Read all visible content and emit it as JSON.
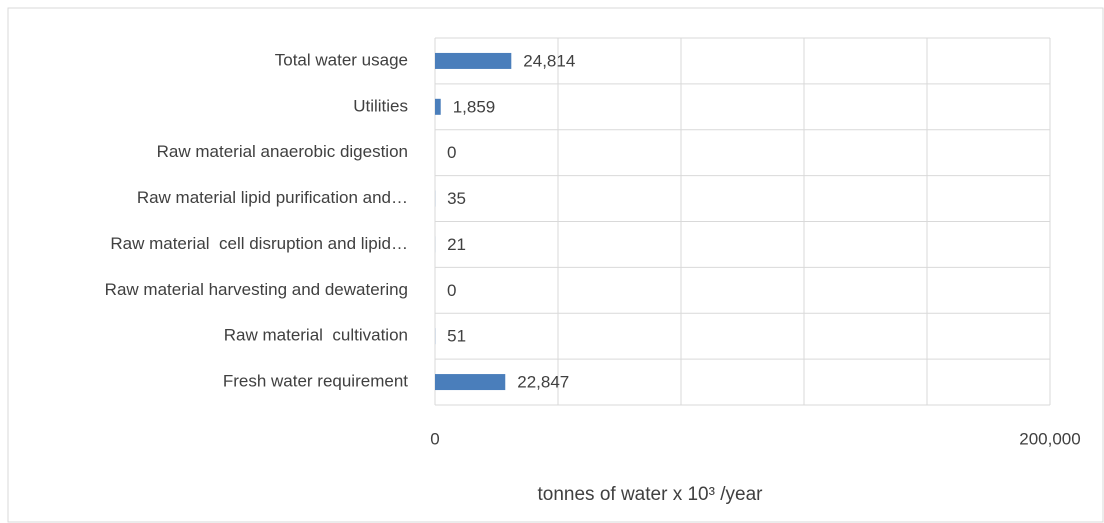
{
  "chart_data": {
    "type": "bar",
    "orientation": "horizontal",
    "categories": [
      "Total water usage",
      "Utilities",
      "Raw material anaerobic digestion",
      "Raw material lipid purification and…",
      "Raw material  cell disruption and lipid…",
      "Raw material harvesting and dewatering",
      "Raw material  cultivation",
      "Fresh water requirement"
    ],
    "values": [
      24814,
      1859,
      0,
      35,
      21,
      0,
      51,
      22847
    ],
    "value_labels": [
      "24,814",
      "1,859",
      "0",
      "35",
      "21",
      "0",
      "51",
      "22,847"
    ],
    "color": "#4a7ebb",
    "xlim": [
      0,
      200000
    ],
    "xticks": [
      0,
      {
        "value": 200000,
        "label": "200,000"
      }
    ],
    "grid": true,
    "xgrid_step": 40000,
    "xlabel": "tonnes of water x 10³ /year"
  }
}
